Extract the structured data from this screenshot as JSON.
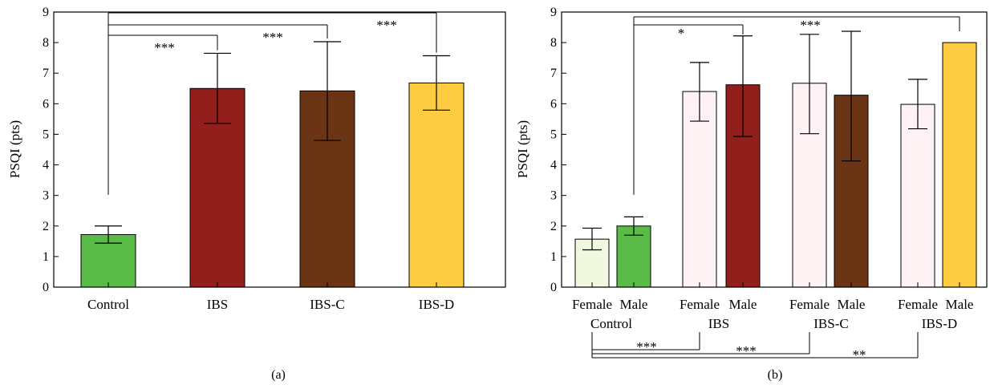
{
  "chart_data": [
    {
      "type": "bar",
      "panel_label": "(a)",
      "ylabel": "PSQI (pts)",
      "ylim": [
        0,
        9
      ],
      "yticks": [
        "0",
        "1",
        "2",
        "3",
        "4",
        "5",
        "6",
        "7",
        "8",
        "9"
      ],
      "categories": [
        "Control",
        "IBS",
        "IBS-C",
        "IBS-D"
      ],
      "values": [
        1.72,
        6.5,
        6.42,
        6.68
      ],
      "error_low": [
        1.44,
        5.36,
        4.8,
        5.79
      ],
      "error_high": [
        2.0,
        7.65,
        8.03,
        7.57
      ],
      "colors": [
        "#5bbb47",
        "#931f1d",
        "#6a3415",
        "#fdcc40"
      ],
      "significance": [
        {
          "from": "Control",
          "to": "IBS",
          "label": "***"
        },
        {
          "from": "Control",
          "to": "IBS-C",
          "label": "***"
        },
        {
          "from": "Control",
          "to": "IBS-D",
          "label": "***"
        }
      ]
    },
    {
      "type": "bar",
      "panel_label": "(b)",
      "ylabel": "PSQI (pts)",
      "ylim": [
        0,
        9
      ],
      "yticks": [
        "0",
        "1",
        "2",
        "3",
        "4",
        "5",
        "6",
        "7",
        "8",
        "9"
      ],
      "groups": [
        "Control",
        "IBS",
        "IBS-C",
        "IBS-D"
      ],
      "subcategories": [
        "Female",
        "Male"
      ],
      "bars": [
        {
          "group": "Control",
          "sex": "Female",
          "value": 1.57,
          "low": 1.22,
          "high": 1.93,
          "color": "#f0f8e0"
        },
        {
          "group": "Control",
          "sex": "Male",
          "value": 2.0,
          "low": 1.7,
          "high": 2.3,
          "color": "#5bbb47"
        },
        {
          "group": "IBS",
          "sex": "Female",
          "value": 6.4,
          "low": 5.43,
          "high": 7.35,
          "color": "#fff2f5"
        },
        {
          "group": "IBS",
          "sex": "Male",
          "value": 6.62,
          "low": 4.93,
          "high": 8.22,
          "color": "#931f1d"
        },
        {
          "group": "IBS-C",
          "sex": "Female",
          "value": 6.67,
          "low": 5.02,
          "high": 8.27,
          "color": "#fff2f5"
        },
        {
          "group": "IBS-C",
          "sex": "Male",
          "value": 6.28,
          "low": 4.13,
          "high": 8.37,
          "color": "#6a3415"
        },
        {
          "group": "IBS-D",
          "sex": "Female",
          "value": 5.98,
          "low": 5.18,
          "high": 6.8,
          "color": "#fff2f5"
        },
        {
          "group": "IBS-D",
          "sex": "Male",
          "value": 8.0,
          "low": null,
          "high": null,
          "color": "#fdcc40"
        }
      ],
      "significance_top": [
        {
          "from": "Control Male",
          "to": "IBS Male",
          "label": "*"
        },
        {
          "from": "Control Male",
          "to": "IBS-D Male",
          "label": "***"
        }
      ],
      "significance_bottom": [
        {
          "from": "Control Female",
          "to": "IBS Female",
          "label": "***"
        },
        {
          "from": "Control Female",
          "to": "IBS-C Female",
          "label": "***"
        },
        {
          "from": "Control Female",
          "to": "IBS-D Female",
          "label": "**"
        }
      ]
    }
  ]
}
